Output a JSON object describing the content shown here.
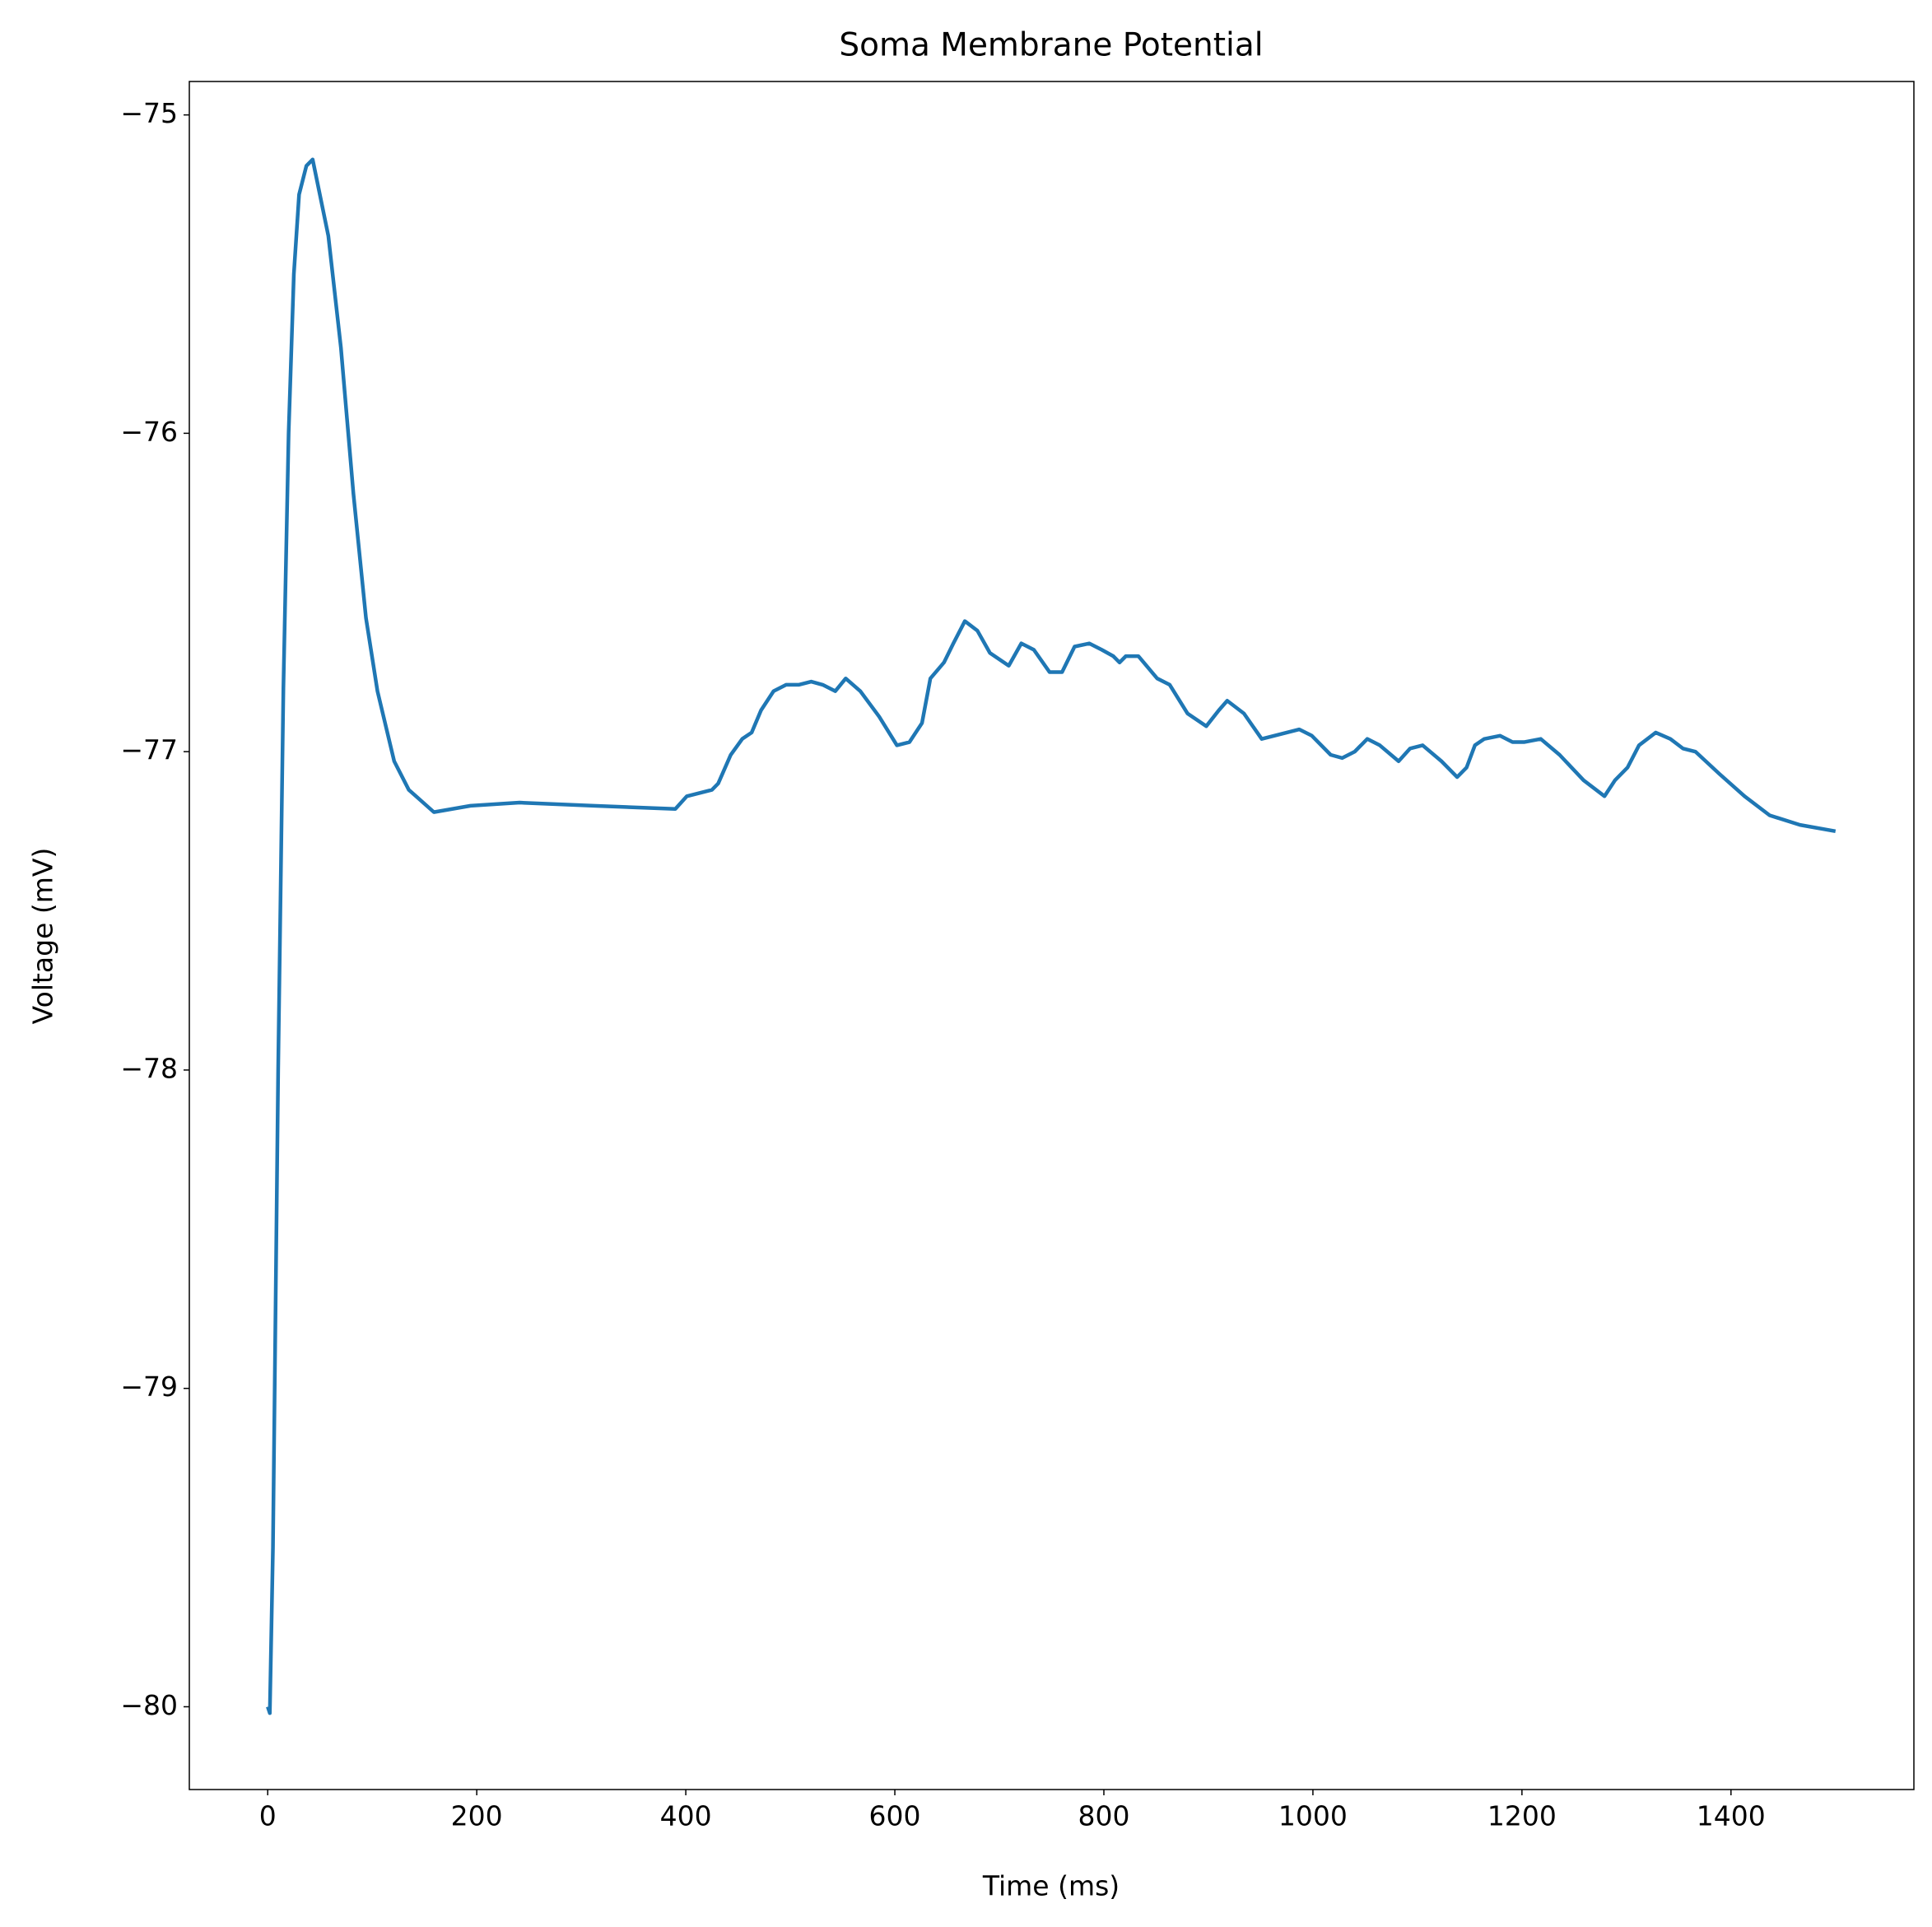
{
  "chart_data": {
    "type": "line",
    "title": "Soma Membrane Potential",
    "x_label": "Time (ms)",
    "y_label": "Voltage (mV)",
    "xlim": [
      -75,
      1575
    ],
    "ylim": [
      -80.26,
      -74.895
    ],
    "xticks": [
      0,
      200,
      400,
      600,
      800,
      1000,
      1200,
      1400
    ],
    "yticks": [
      {
        "value": -80,
        "label": "−80"
      },
      {
        "value": -79,
        "label": "−79"
      },
      {
        "value": -78,
        "label": "−78"
      },
      {
        "value": -77,
        "label": "−77"
      },
      {
        "value": -76,
        "label": "−76"
      },
      {
        "value": -75,
        "label": "−75"
      }
    ],
    "grid": false,
    "series": [
      {
        "color": "#1f77b4",
        "x": [
          0,
          2,
          5,
          10,
          15,
          20,
          25,
          30,
          37,
          43,
          58,
          70,
          82,
          94,
          105,
          121,
          135,
          159,
          194,
          241,
          312,
          390,
          401,
          425,
          431,
          443,
          454,
          463,
          472,
          484,
          496,
          508,
          520,
          531,
          543,
          553,
          567,
          585,
          602,
          614,
          626,
          634,
          647,
          656,
          667,
          679,
          691,
          709,
          721,
          733,
          748,
          760,
          772,
          786,
          798,
          809,
          815,
          821,
          833,
          851,
          863,
          880,
          898,
          910,
          918,
          934,
          951,
          963,
          975,
          987,
          999,
          1017,
          1028,
          1040,
          1052,
          1064,
          1082,
          1093,
          1105,
          1123,
          1138,
          1147,
          1155,
          1164,
          1179,
          1191,
          1202,
          1218,
          1236,
          1259,
          1279,
          1289,
          1301,
          1312,
          1328,
          1342,
          1354,
          1366,
          1389,
          1413,
          1437,
          1466,
          1500
        ],
        "values": [
          -80,
          -80.02,
          -79.5,
          -78,
          -76.8,
          -76,
          -75.5,
          -75.25,
          -75.16,
          -75.14,
          -75.38,
          -75.73,
          -76.19,
          -76.58,
          -76.81,
          -77.03,
          -77.12,
          -77.19,
          -77.17,
          -77.16,
          -77.17,
          -77.18,
          -77.14,
          -77.12,
          -77.1,
          -77.01,
          -76.96,
          -76.94,
          -76.87,
          -76.81,
          -76.79,
          -76.79,
          -76.78,
          -76.79,
          -76.81,
          -76.77,
          -76.81,
          -76.89,
          -76.98,
          -76.97,
          -76.91,
          -76.77,
          -76.72,
          -76.66,
          -76.59,
          -76.62,
          -76.69,
          -76.73,
          -76.66,
          -76.68,
          -76.75,
          -76.75,
          -76.67,
          -76.66,
          -76.68,
          -76.7,
          -76.72,
          -76.7,
          -76.7,
          -76.77,
          -76.79,
          -76.88,
          -76.92,
          -76.87,
          -76.84,
          -76.88,
          -76.96,
          -76.95,
          -76.94,
          -76.93,
          -76.95,
          -77.01,
          -77.02,
          -77.0,
          -76.96,
          -76.98,
          -77.03,
          -76.99,
          -76.98,
          -77.03,
          -77.08,
          -77.05,
          -76.98,
          -76.96,
          -76.95,
          -76.97,
          -76.97,
          -76.96,
          -77.01,
          -77.09,
          -77.14,
          -77.09,
          -77.05,
          -76.98,
          -76.94,
          -76.96,
          -76.99,
          -77.0,
          -77.07,
          -77.14,
          -77.2,
          -77.23,
          -77.25
        ]
      }
    ]
  }
}
